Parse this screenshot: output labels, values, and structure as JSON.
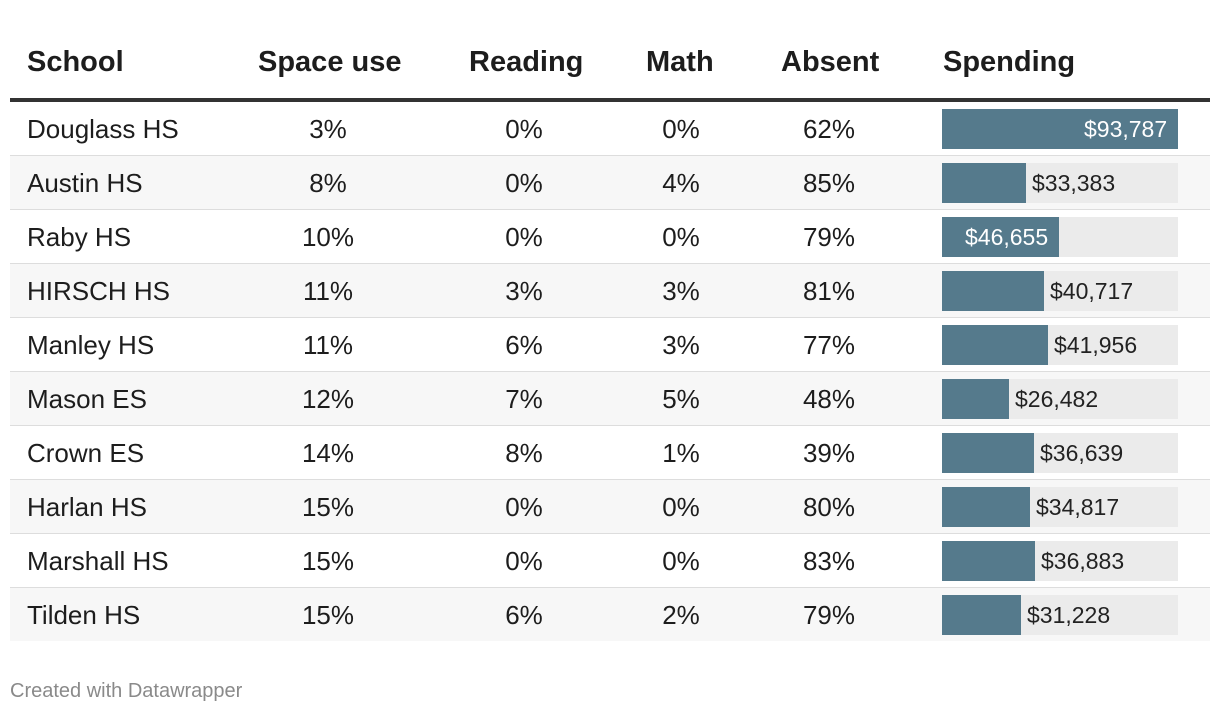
{
  "chart_data": {
    "type": "table",
    "columns": [
      "School",
      "Space use",
      "Reading",
      "Math",
      "Absent",
      "Spending"
    ],
    "rows": [
      {
        "school": "Douglass HS",
        "space_use": "3%",
        "reading": "0%",
        "math": "0%",
        "absent": "62%",
        "spending": 93787,
        "spending_label": "$93,787"
      },
      {
        "school": "Austin HS",
        "space_use": "8%",
        "reading": "0%",
        "math": "4%",
        "absent": "85%",
        "spending": 33383,
        "spending_label": "$33,383"
      },
      {
        "school": "Raby HS",
        "space_use": "10%",
        "reading": "0%",
        "math": "0%",
        "absent": "79%",
        "spending": 46655,
        "spending_label": "$46,655"
      },
      {
        "school": "HIRSCH HS",
        "space_use": "11%",
        "reading": "3%",
        "math": "3%",
        "absent": "81%",
        "spending": 40717,
        "spending_label": "$40,717"
      },
      {
        "school": "Manley HS",
        "space_use": "11%",
        "reading": "6%",
        "math": "3%",
        "absent": "77%",
        "spending": 41956,
        "spending_label": "$41,956"
      },
      {
        "school": "Mason ES",
        "space_use": "12%",
        "reading": "7%",
        "math": "5%",
        "absent": "48%",
        "spending": 26482,
        "spending_label": "$26,482"
      },
      {
        "school": "Crown ES",
        "space_use": "14%",
        "reading": "8%",
        "math": "1%",
        "absent": "39%",
        "spending": 36639,
        "spending_label": "$36,639"
      },
      {
        "school": "Harlan HS",
        "space_use": "15%",
        "reading": "0%",
        "math": "0%",
        "absent": "80%",
        "spending": 34817,
        "spending_label": "$34,817"
      },
      {
        "school": "Marshall HS",
        "space_use": "15%",
        "reading": "0%",
        "math": "0%",
        "absent": "83%",
        "spending": 36883,
        "spending_label": "$36,883"
      },
      {
        "school": "Tilden HS",
        "space_use": "15%",
        "reading": "6%",
        "math": "2%",
        "absent": "79%",
        "spending": 31228,
        "spending_label": "$31,228"
      }
    ],
    "spending_max": 93787,
    "bar_color": "#557a8c"
  },
  "footer": "Created with Datawrapper"
}
